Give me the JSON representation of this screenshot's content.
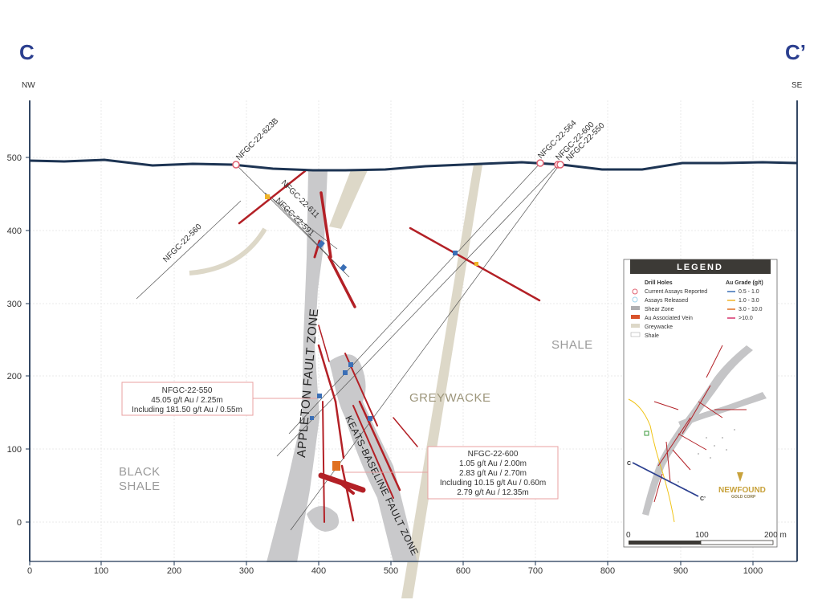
{
  "section": {
    "start_label": "C",
    "end_label": "C’",
    "start_direction": "NW",
    "end_direction": "SE"
  },
  "axes": {
    "x_ticks": [
      "0",
      "100",
      "200",
      "300",
      "400",
      "500",
      "600",
      "700",
      "800",
      "900",
      "1000"
    ],
    "y_ticks": [
      "500",
      "400",
      "300",
      "200",
      "100",
      "0"
    ]
  },
  "rock_units": {
    "shale": "SHALE",
    "greywacke": "GREYWACKE",
    "black_shale_line1": "BLACK",
    "black_shale_line2": "SHALE"
  },
  "faults": {
    "appleton": "APPLETON FAULT ZONE",
    "keats_baseline": "KEATS-BASELINE FAULT ZONE"
  },
  "drill_holes": [
    "NFGC-22-623B",
    "NFGC-22-611",
    "NFGC-22-591",
    "NFGC-22-560",
    "NFGC-22-564",
    "NFGC-22-600",
    "NFGC-22-550"
  ],
  "callouts": {
    "nfgc_550": {
      "title": "NFGC-22-550",
      "line1": "45.05 g/t Au / 2.25m",
      "line2": "Including 181.50 g/t Au / 0.55m"
    },
    "nfgc_600": {
      "title": "NFGC-22-600",
      "line1": "1.05 g/t Au / 2.00m",
      "line2": "2.83 g/t Au / 2.70m",
      "line3": "Including 10.15 g/t Au / 0.60m",
      "line4": "2.79 g/t Au / 12.35m"
    }
  },
  "legend": {
    "title": "LEGEND",
    "drill_holes_heading": "Drill Holes",
    "items": [
      "Current Assays Reported",
      "Assays Released",
      "Shear Zone",
      "Au Associated Vein",
      "Greywacke",
      "Shale"
    ],
    "grade_heading": "Au Grade (g/t)",
    "grades": [
      "0.5 - 1.0",
      "1.0 - 3.0",
      "3.0 - 10.0",
      ">10.0"
    ],
    "grade_colors": [
      "#3b6fb6",
      "#f0b429",
      "#e07020",
      "#d6336c"
    ],
    "map_c": "C",
    "map_c_prime": "C’",
    "scale": [
      "0",
      "100",
      "200 m"
    ],
    "logo_line1": "NEWFOUND",
    "logo_line2": "GOLD CORP"
  },
  "colors": {
    "shear_zone": "#c8c8ca",
    "greywacke": "#ddd8c8",
    "vein": "#b32026",
    "surface": "#1d3453",
    "frame": "#1d3453",
    "legend_header": "#3c3a36"
  }
}
